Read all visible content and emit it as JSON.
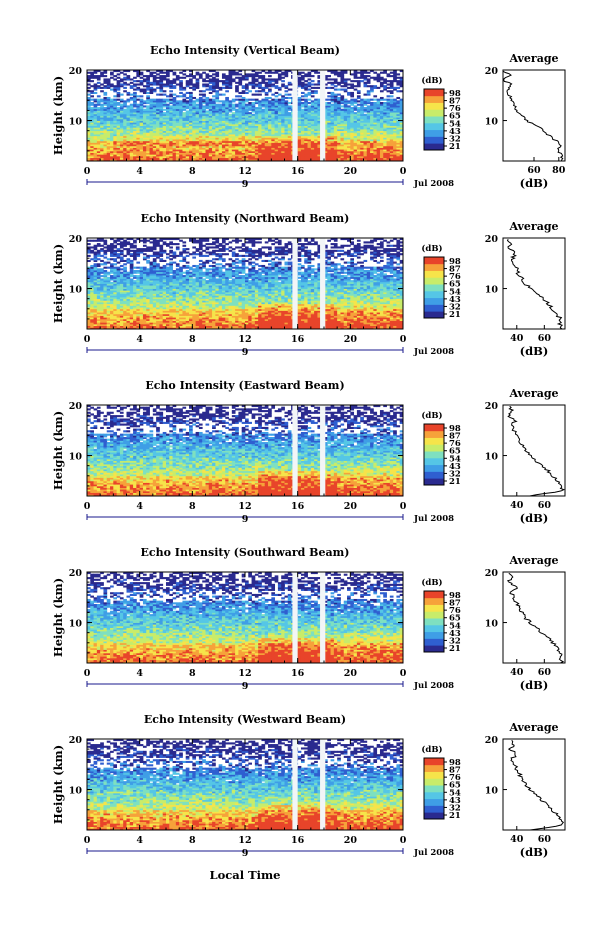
{
  "figure": {
    "xlabel": "Local Time",
    "date_label": "Jul 2008",
    "day_label": "9"
  },
  "colormap": {
    "unit": "(dB)",
    "tick_labels": [
      "98",
      "87",
      "76",
      "65",
      "54",
      "43",
      "32",
      "21"
    ],
    "colors": [
      "#2a2a8f",
      "#2f5fd0",
      "#3f9ee6",
      "#55c6e6",
      "#7ee0c0",
      "#c8ec6a",
      "#f6e44a",
      "#f6a23a",
      "#e8442a"
    ]
  },
  "chart_data": [
    {
      "type": "heatmap",
      "title": "Echo Intensity (Vertical Beam)",
      "ylabel": "Height (km)",
      "x_ticks": [
        "0",
        "4",
        "8",
        "12",
        "16",
        "20",
        "0"
      ],
      "y_ticks": [
        "10",
        "20"
      ],
      "xlim": [
        0,
        24
      ],
      "ylim": [
        2,
        20
      ],
      "gaps_hours": [
        [
          15.6,
          16.0
        ],
        [
          17.7,
          18.1
        ]
      ],
      "profile": {
        "title": "Average",
        "xlabel": "(dB)",
        "x_ticks": [
          "60",
          "80"
        ],
        "y_ticks": [
          "10",
          "20"
        ],
        "xlim": [
          35,
          85
        ],
        "heights": [
          2,
          3,
          4,
          5,
          6,
          7,
          8,
          9,
          10,
          11,
          12,
          13,
          14,
          15,
          16,
          17,
          18,
          19,
          20
        ],
        "values": [
          81,
          83,
          79,
          82,
          78,
          72,
          68,
          62,
          54,
          50,
          46,
          44,
          42,
          40,
          38,
          42,
          36,
          40,
          35
        ]
      }
    },
    {
      "type": "heatmap",
      "title": "Echo Intensity (Northward Beam)",
      "ylabel": "Height (km)",
      "x_ticks": [
        "0",
        "4",
        "8",
        "12",
        "16",
        "20",
        "0"
      ],
      "y_ticks": [
        "10",
        "20"
      ],
      "xlim": [
        0,
        24
      ],
      "ylim": [
        2,
        20
      ],
      "gaps_hours": [
        [
          15.6,
          16.0
        ],
        [
          17.7,
          18.1
        ]
      ],
      "profile": {
        "title": "Average",
        "xlabel": "(dB)",
        "x_ticks": [
          "40",
          "60"
        ],
        "y_ticks": [
          "10",
          "20"
        ],
        "xlim": [
          30,
          75
        ],
        "heights": [
          2,
          3,
          4,
          5,
          6,
          7,
          8,
          9,
          10,
          11,
          12,
          13,
          14,
          15,
          16,
          17,
          18,
          19,
          20
        ],
        "values": [
          73,
          71,
          72,
          68,
          66,
          63,
          59,
          55,
          50,
          46,
          44,
          41,
          40,
          38,
          37,
          39,
          34,
          36,
          33
        ]
      }
    },
    {
      "type": "heatmap",
      "title": "Echo Intensity (Eastward Beam)",
      "ylabel": "Height (km)",
      "x_ticks": [
        "0",
        "4",
        "8",
        "12",
        "16",
        "20",
        "0"
      ],
      "y_ticks": [
        "10",
        "20"
      ],
      "xlim": [
        0,
        24
      ],
      "ylim": [
        2,
        20
      ],
      "gaps_hours": [
        [
          15.6,
          16.0
        ],
        [
          17.7,
          18.1
        ]
      ],
      "profile": {
        "title": "Average",
        "xlabel": "(dB)",
        "x_ticks": [
          "40",
          "60"
        ],
        "y_ticks": [
          "10",
          "20"
        ],
        "xlim": [
          30,
          75
        ],
        "heights": [
          2,
          3,
          4,
          5,
          6,
          7,
          8,
          9,
          10,
          11,
          12,
          13,
          14,
          15,
          16,
          17,
          18,
          19,
          20
        ],
        "values": [
          48,
          73,
          72,
          70,
          66,
          63,
          58,
          54,
          50,
          46,
          44,
          41,
          40,
          38,
          37,
          39,
          34,
          36,
          33
        ]
      }
    },
    {
      "type": "heatmap",
      "title": "Echo Intensity (Southward Beam)",
      "ylabel": "Height (km)",
      "x_ticks": [
        "0",
        "4",
        "8",
        "12",
        "16",
        "20",
        "0"
      ],
      "y_ticks": [
        "10",
        "20"
      ],
      "xlim": [
        0,
        24
      ],
      "ylim": [
        2,
        20
      ],
      "gaps_hours": [
        [
          15.6,
          16.0
        ],
        [
          17.7,
          18.1
        ]
      ],
      "profile": {
        "title": "Average",
        "xlabel": "(dB)",
        "x_ticks": [
          "40",
          "60"
        ],
        "y_ticks": [
          "10",
          "20"
        ],
        "xlim": [
          30,
          75
        ],
        "heights": [
          2,
          3,
          4,
          5,
          6,
          7,
          8,
          9,
          10,
          11,
          12,
          13,
          14,
          15,
          16,
          17,
          18,
          19,
          20
        ],
        "values": [
          73,
          72,
          71,
          69,
          66,
          63,
          58,
          54,
          50,
          46,
          44,
          42,
          40,
          38,
          36,
          40,
          34,
          37,
          33
        ]
      }
    },
    {
      "type": "heatmap",
      "title": "Echo Intensity (Westward Beam)",
      "ylabel": "Height (km)",
      "x_ticks": [
        "0",
        "4",
        "8",
        "12",
        "16",
        "20",
        "0"
      ],
      "y_ticks": [
        "10",
        "20"
      ],
      "xlim": [
        0,
        24
      ],
      "ylim": [
        2,
        20
      ],
      "gaps_hours": [
        [
          15.6,
          16.0
        ],
        [
          17.7,
          18.1
        ]
      ],
      "profile": {
        "title": "Average",
        "xlabel": "(dB)",
        "x_ticks": [
          "40",
          "60"
        ],
        "y_ticks": [
          "10",
          "20"
        ],
        "xlim": [
          30,
          75
        ],
        "heights": [
          2,
          3,
          4,
          5,
          6,
          7,
          8,
          9,
          10,
          11,
          12,
          13,
          14,
          15,
          16,
          17,
          18,
          19,
          20
        ],
        "values": [
          50,
          73,
          72,
          69,
          66,
          62,
          58,
          54,
          50,
          46,
          44,
          42,
          40,
          38,
          36,
          40,
          35,
          38,
          34
        ]
      }
    }
  ]
}
